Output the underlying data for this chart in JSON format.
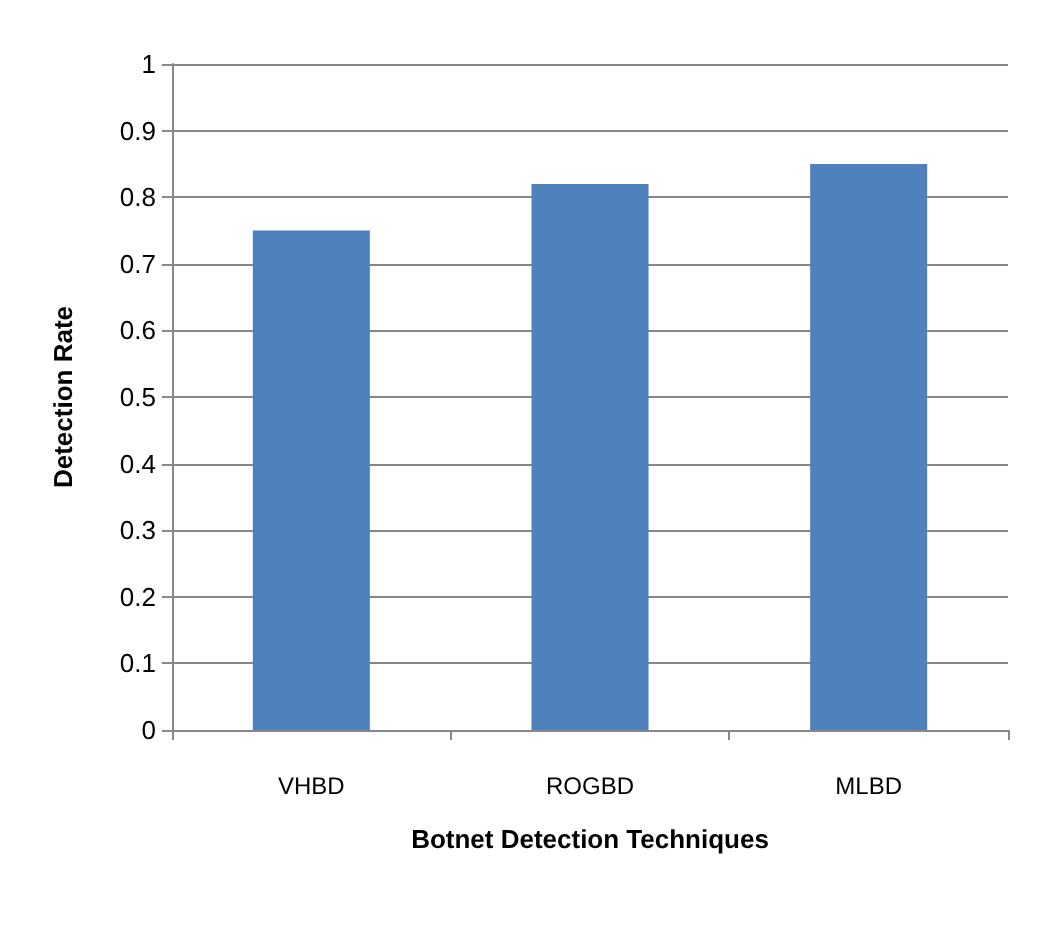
{
  "chart_data": {
    "type": "bar",
    "xlabel": "Botnet Detection Techniques",
    "ylabel": "Detection Rate",
    "categories": [
      "VHBD",
      "ROGBD",
      "MLBD"
    ],
    "values": [
      0.75,
      0.82,
      0.85
    ],
    "color": "#4f81bd",
    "ylim": [
      0,
      1
    ],
    "yticks": [
      0,
      0.1,
      0.2,
      0.3,
      0.4,
      0.5,
      0.6,
      0.7,
      0.8,
      0.9,
      1
    ],
    "grid": "y"
  }
}
